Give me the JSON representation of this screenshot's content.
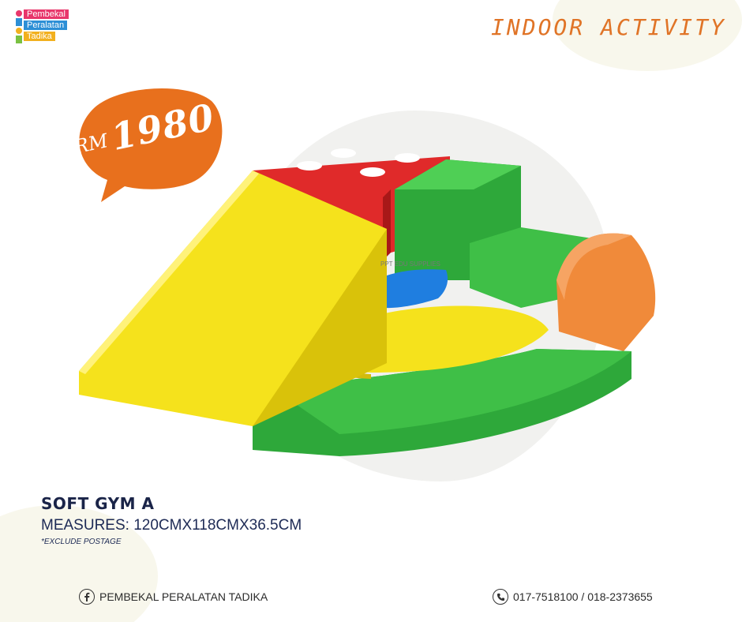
{
  "brand": {
    "logo_lines": [
      "Pembekal",
      "Peralatan",
      "Tadika"
    ],
    "logo_colors": [
      "#e8366b",
      "#2d8fd6",
      "#f2b01e"
    ]
  },
  "header": {
    "category": "INDOOR ACTIVITY"
  },
  "price": {
    "currency": "RM",
    "amount": "1980",
    "bubble_color": "#e8701d"
  },
  "product": {
    "watermark": "PPT EDU SUPPLIES",
    "name": "SOFT GYM A",
    "measures": "MEASURES: 120CMX118CMX36.5CM",
    "note": "*EXCLUDE POSTAGE",
    "colors": {
      "yellow": "#f5e21c",
      "red": "#e02a2a",
      "green": "#2ea83a",
      "blue": "#1f7ee0",
      "orange": "#f08a3a"
    }
  },
  "footer": {
    "facebook_icon": "facebook-icon",
    "facebook_label": "PEMBEKAL PERALATAN TADIKA",
    "phone_icon": "phone-icon",
    "phone_label": "017-7518100 / 018-2373655"
  }
}
